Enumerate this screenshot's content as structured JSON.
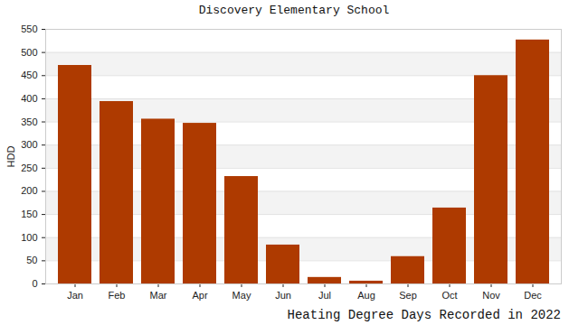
{
  "chart_data": {
    "type": "bar",
    "title": "Discovery Elementary School",
    "xlabel": "Heating Degree Days Recorded in 2022",
    "ylabel": "HDD",
    "categories": [
      "Jan",
      "Feb",
      "Mar",
      "Apr",
      "May",
      "Jun",
      "Jul",
      "Aug",
      "Sep",
      "Oct",
      "Nov",
      "Dec"
    ],
    "values": [
      472,
      394,
      356,
      347,
      232,
      84,
      14,
      6,
      59,
      164,
      450,
      527
    ],
    "color": "#ae3a00",
    "ylim": [
      0,
      550
    ],
    "yticks": [
      0,
      50,
      100,
      150,
      200,
      250,
      300,
      350,
      400,
      450,
      500,
      550
    ],
    "grid": true
  }
}
